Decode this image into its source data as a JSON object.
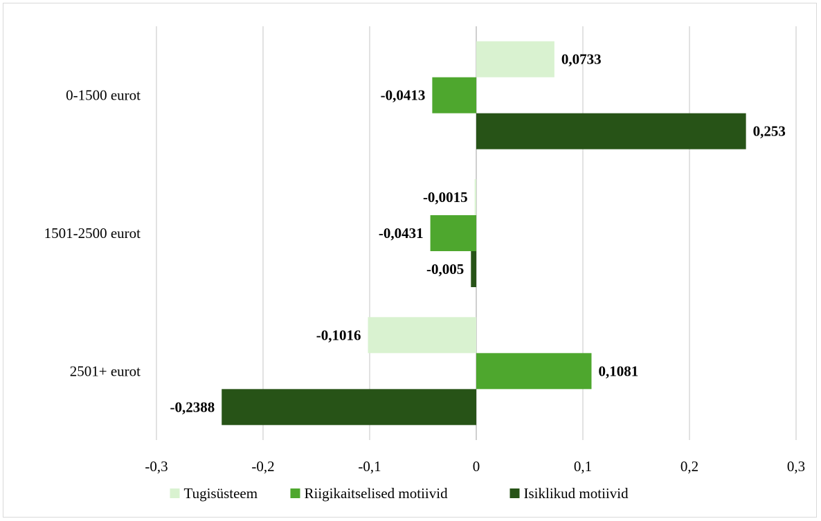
{
  "chart_data": {
    "type": "bar",
    "orientation": "horizontal",
    "categories": [
      "0-1500 eurot",
      "1501-2500 eurot",
      "2501+ eurot"
    ],
    "series": [
      {
        "name": "Tugisüsteem",
        "color": "#d9f2d0",
        "values": [
          0.0733,
          -0.0015,
          -0.1016
        ],
        "labels": [
          "0,0733",
          "-0,0015",
          "-0,1016"
        ]
      },
      {
        "name": "Riigikaitselised motiivid",
        "color": "#4ea72e",
        "values": [
          -0.0413,
          -0.0431,
          0.1081
        ],
        "labels": [
          "-0,0413",
          "-0,0431",
          "0,1081"
        ]
      },
      {
        "name": "Isiklikud motiivid",
        "color": "#275317",
        "values": [
          0.253,
          -0.005,
          -0.2388
        ],
        "labels": [
          "0,253",
          "-0,005",
          "-0,2388"
        ]
      }
    ],
    "xlim": [
      -0.3,
      0.3
    ],
    "xticks": [
      -0.3,
      -0.2,
      -0.1,
      0,
      0.1,
      0.2,
      0.3
    ],
    "xtick_labels": [
      "-0,3",
      "-0,2",
      "-0,1",
      "0",
      "0,1",
      "0,2",
      "0,3"
    ],
    "grid": "vertical",
    "legend_position": "bottom"
  }
}
